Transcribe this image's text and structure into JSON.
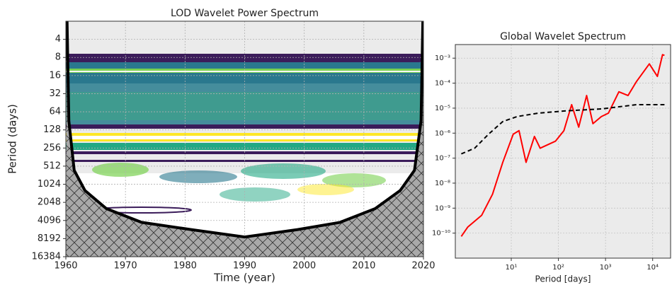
{
  "chart_data": [
    {
      "type": "contour",
      "title": "LOD Wavelet Power Spectrum",
      "xlabel": "Time (year)",
      "ylabel": "Period (days)",
      "xlim": [
        1960,
        2020
      ],
      "xticks": [
        1960,
        1970,
        1980,
        1990,
        2000,
        2010,
        2020
      ],
      "ylim": [
        2,
        16384
      ],
      "yscale": "log2",
      "yinvert": true,
      "yticks": [
        4,
        8,
        16,
        32,
        64,
        128,
        256,
        512,
        1024,
        2048,
        4096,
        8192,
        16384
      ],
      "grid": true,
      "series": [
        {
          "color": "#000000",
          "x": [
            1960.2,
            1960.5,
            1961.4,
            1963.2,
            1966.8,
            1972.7,
            1981,
            1990,
            1998.9,
            2006,
            2011.9,
            2016.1,
            2018.5,
            2019.6,
            2019.9
          ],
          "values": [
            2,
            90,
            600,
            1300,
            2600,
            4400,
            5800,
            7700,
            5800,
            4400,
            2600,
            1300,
            600,
            90,
            2
          ]
        }
      ]
    },
    {
      "type": "line",
      "title": "Global Wavelet Spectrum",
      "xlabel": "Period [days]",
      "xscale": "log",
      "yscale": "log",
      "grid": true,
      "xlim": [
        0.65,
        24000
      ],
      "xticks": [
        {
          "value": 10,
          "label": "10¹"
        },
        {
          "value": 100,
          "label": "10²"
        },
        {
          "value": 1000,
          "label": "10³"
        },
        {
          "value": 10000,
          "label": "10⁴"
        }
      ],
      "ylim": [
        1e-11,
        0.0035
      ],
      "yticks": [
        {
          "value": 1e-10,
          "label": "10⁻¹⁰"
        },
        {
          "value": 1e-09,
          "label": "10⁻⁹"
        },
        {
          "value": 1e-08,
          "label": "10⁻⁸"
        },
        {
          "value": 1e-07,
          "label": "10⁻⁷"
        },
        {
          "value": 1e-06,
          "label": "10⁻⁶"
        },
        {
          "value": 1e-05,
          "label": "10⁻⁵"
        },
        {
          "value": 0.0001,
          "label": "10⁻⁴"
        },
        {
          "value": 0.001,
          "label": "10⁻³"
        }
      ],
      "series": [
        {
          "color": "#ff0000",
          "dash": false,
          "x": [
            0.87,
            1.19,
            2.36,
            4.0,
            6.6,
            11,
            14.6,
            20.6,
            31,
            41,
            87,
            131,
            191,
            270,
            397,
            540,
            814,
            1150,
            1920,
            3000,
            4550,
            8500,
            12600,
            16200,
            17800
          ],
          "values": [
            7.4e-11,
            1.74e-10,
            5.2e-10,
            3.6e-09,
            6.8e-08,
            9.1e-07,
            1.26e-06,
            6.8e-08,
            7.4e-07,
            2.5e-07,
            4.8e-07,
            1.26e-06,
            1.38e-05,
            1.74e-06,
            3.2e-05,
            2.4e-06,
            4.6e-06,
            6.3e-06,
            4.5e-05,
            3.2e-05,
            0.000117,
            0.00059,
            0.000186,
            0.00138,
            0.00129
          ]
        },
        {
          "color": "#000000",
          "dash": true,
          "x": [
            0.87,
            1.67,
            3.3,
            6.6,
            13.2,
            37,
            146,
            814,
            4550,
            17800
          ],
          "values": [
            1.48e-07,
            2.5e-07,
            9.1e-07,
            2.9e-06,
            4.6e-06,
            6.3e-06,
            7.8e-06,
            9.3e-06,
            1.38e-05,
            1.38e-05
          ]
        }
      ]
    }
  ]
}
